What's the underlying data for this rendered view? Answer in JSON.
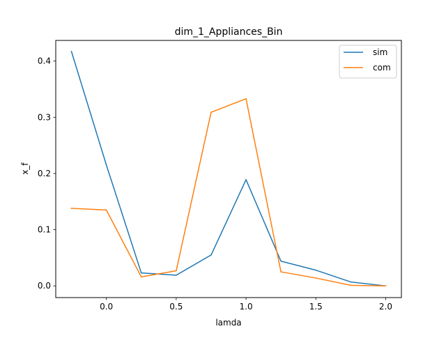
{
  "chart_data": {
    "type": "line",
    "title": "dim_1_Appliances_Bin",
    "xlabel": "lamda",
    "ylabel": "x_f",
    "xlim": [
      -0.3625,
      2.1125
    ],
    "ylim": [
      -0.0208,
      0.4368
    ],
    "xticks": [
      0.0,
      0.5,
      1.0,
      1.5,
      2.0
    ],
    "xtick_labels": [
      "0.0",
      "0.5",
      "1.0",
      "1.5",
      "2.0"
    ],
    "yticks": [
      0.0,
      0.1,
      0.2,
      0.3,
      0.4
    ],
    "ytick_labels": [
      "0.0",
      "0.1",
      "0.2",
      "0.3",
      "0.4"
    ],
    "grid": false,
    "legend_position": "top-right",
    "x": [
      -0.25,
      0.0,
      0.25,
      0.5,
      0.75,
      1.0,
      1.25,
      1.5,
      1.75,
      2.0
    ],
    "series": [
      {
        "name": "sim",
        "color": "#1f77b4",
        "values": [
          0.417,
          0.215,
          0.023,
          0.019,
          0.055,
          0.189,
          0.044,
          0.028,
          0.007,
          0.0
        ]
      },
      {
        "name": "com",
        "color": "#ff7f0e",
        "values": [
          0.138,
          0.135,
          0.016,
          0.027,
          0.309,
          0.333,
          0.025,
          0.014,
          0.001,
          0.0
        ]
      }
    ]
  }
}
